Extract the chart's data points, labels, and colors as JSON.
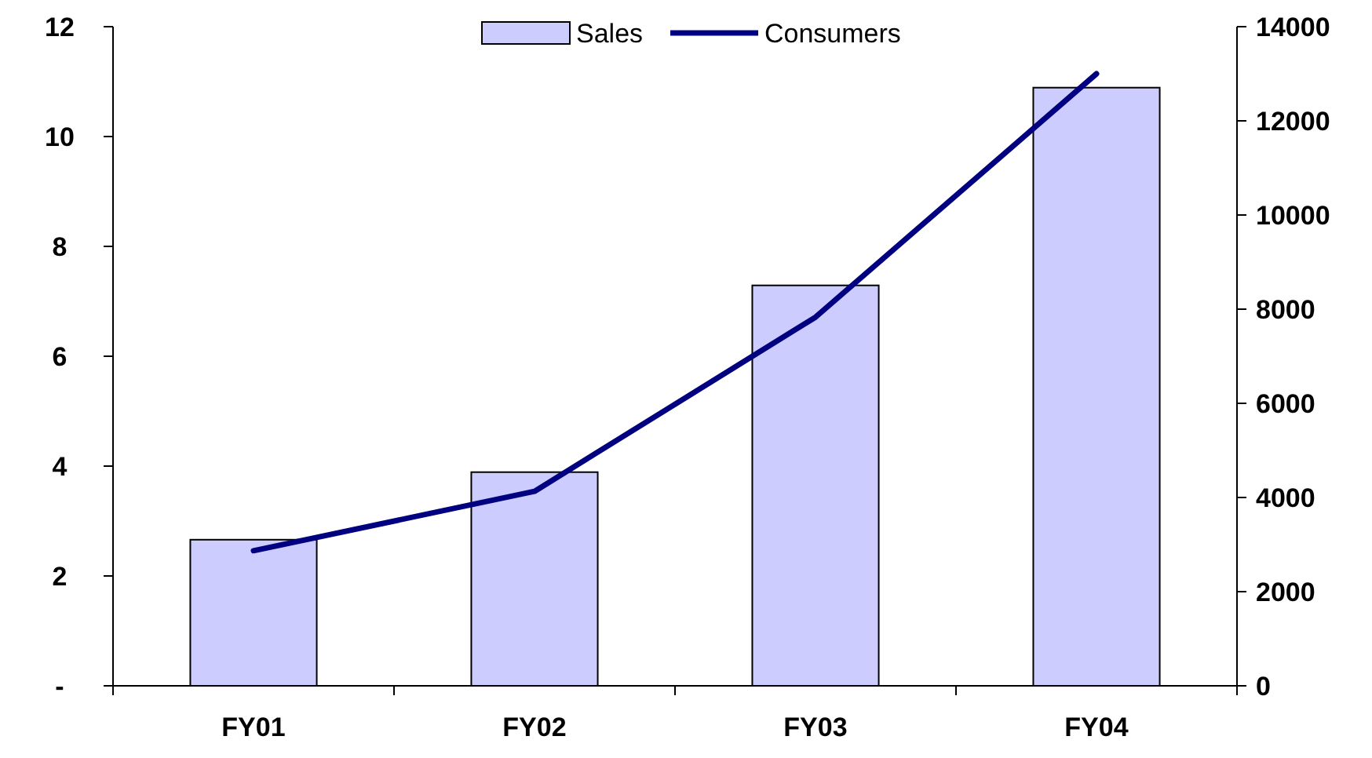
{
  "chart_data": {
    "type": "bar",
    "categories": [
      "FY01",
      "FY02",
      "FY03",
      "FY04"
    ],
    "series": [
      {
        "name": "Sales",
        "color": "#ccccff",
        "values": [
          2.66,
          3.89,
          7.29,
          10.89
        ]
      },
      {
        "name": "Consumers",
        "type": "line",
        "axis": "y2",
        "color": "#000080",
        "values": [
          2870,
          4130,
          7830,
          13000
        ]
      }
    ],
    "ylim": [
      0,
      12
    ],
    "yticks": [
      {
        "value": 0,
        "label": "-"
      },
      2,
      4,
      6,
      8,
      10,
      12
    ],
    "y2lim": [
      0,
      14000
    ],
    "y2ticks": [
      0,
      2000,
      4000,
      6000,
      8000,
      10000,
      12000,
      14000
    ],
    "grid": false,
    "legend": "top",
    "marker": "none",
    "line_style": "solid"
  }
}
